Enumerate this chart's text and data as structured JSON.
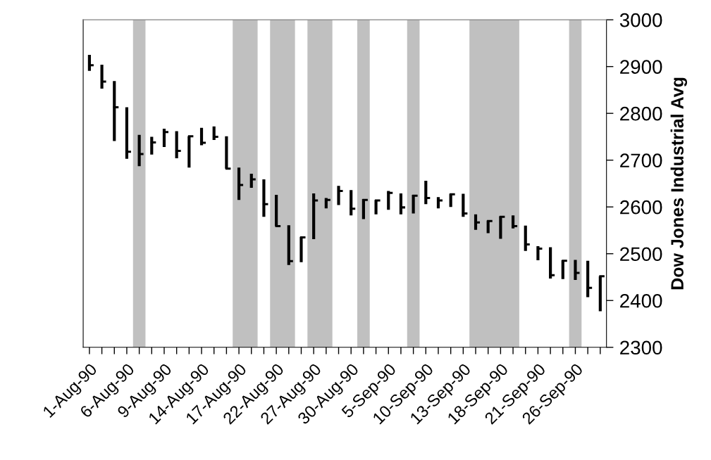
{
  "chart_data": {
    "type": "scatter",
    "ylabel": "Dow Jones Industrial Avg",
    "categories": [
      "1-Aug-90",
      null,
      null,
      "6-Aug-90",
      null,
      null,
      "9-Aug-90",
      null,
      null,
      "14-Aug-90",
      null,
      null,
      "17-Aug-90",
      null,
      null,
      "22-Aug-90",
      null,
      null,
      "27-Aug-90",
      null,
      null,
      "30-Aug-90",
      null,
      null,
      "5-Sep-90",
      null,
      null,
      "10-Sep-90",
      null,
      null,
      "13-Sep-90",
      null,
      null,
      "18-Sep-90",
      null,
      null,
      "21-Sep-90",
      null,
      null,
      "26-Sep-90",
      null,
      null
    ],
    "values": [
      2903,
      2868,
      2813,
      2718,
      2713,
      2738,
      2760,
      2720,
      2751,
      2737,
      2750,
      2682,
      2647,
      2659,
      2606,
      2559,
      2484,
      2535,
      2614,
      2615,
      2634,
      2596,
      2615,
      2614,
      2630,
      2599,
      2624,
      2619,
      2614,
      2627,
      2586,
      2567,
      2570,
      2579,
      2559,
      2520,
      2511,
      2454,
      2485,
      2459,
      2427,
      2452
    ],
    "errors": [
      [
        2891,
        2925
      ],
      [
        2853,
        2904
      ],
      [
        2741,
        2869
      ],
      [
        2703,
        2813
      ],
      [
        2687,
        2754
      ],
      [
        2712,
        2750
      ],
      [
        2728,
        2767
      ],
      [
        2704,
        2762
      ],
      [
        2684,
        2751
      ],
      [
        2732,
        2769
      ],
      [
        2743,
        2772
      ],
      [
        2682,
        2751
      ],
      [
        2615,
        2684
      ],
      [
        2641,
        2671
      ],
      [
        2579,
        2659
      ],
      [
        2559,
        2626
      ],
      [
        2476,
        2561
      ],
      [
        2482,
        2536
      ],
      [
        2531,
        2629
      ],
      [
        2597,
        2619
      ],
      [
        2604,
        2645
      ],
      [
        2582,
        2636
      ],
      [
        2574,
        2617
      ],
      [
        2584,
        2615
      ],
      [
        2594,
        2634
      ],
      [
        2584,
        2629
      ],
      [
        2586,
        2626
      ],
      [
        2606,
        2656
      ],
      [
        2597,
        2621
      ],
      [
        2600,
        2628
      ],
      [
        2579,
        2628
      ],
      [
        2551,
        2584
      ],
      [
        2544,
        2571
      ],
      [
        2532,
        2580
      ],
      [
        2554,
        2582
      ],
      [
        2506,
        2560
      ],
      [
        2486,
        2516
      ],
      [
        2447,
        2514
      ],
      [
        2446,
        2486
      ],
      [
        2444,
        2487
      ],
      [
        2407,
        2485
      ],
      [
        2377,
        2452
      ]
    ],
    "color": "#000000",
    "ylim": [
      2300,
      3000
    ],
    "yticks": [
      2300,
      2400,
      2500,
      2600,
      2700,
      2800,
      2900,
      3000
    ],
    "grid": false
  }
}
